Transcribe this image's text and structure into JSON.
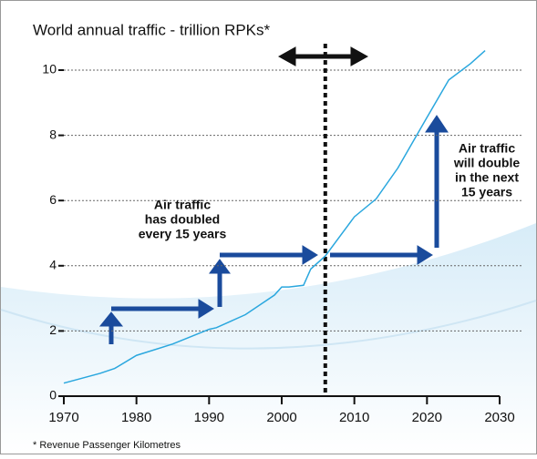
{
  "chart_data": {
    "type": "line",
    "title": "World annual traffic - trillion RPKs*",
    "footnote": "* Revenue Passenger Kilometres",
    "annotations": [
      [
        "Air traffic",
        "has doubled",
        "every 15 years"
      ],
      [
        "Air traffic",
        "will double",
        "in the next",
        "15 years"
      ]
    ],
    "x": [
      1970,
      1975,
      1977,
      1980,
      1985,
      1990,
      1991,
      1993,
      1995,
      1997,
      1999,
      2000,
      2001,
      2003,
      2004,
      2006,
      2010,
      2013,
      2016,
      2020,
      2023,
      2026,
      2028
    ],
    "series": [
      {
        "name": "traffic",
        "color": "#2aa7de",
        "values": [
          0.4,
          0.7,
          0.85,
          1.25,
          1.6,
          2.05,
          2.1,
          2.3,
          2.5,
          2.8,
          3.1,
          3.35,
          3.35,
          3.4,
          3.9,
          4.3,
          5.5,
          6.05,
          7.0,
          8.55,
          9.7,
          10.2,
          10.6
        ]
      }
    ],
    "xlim": [
      1970,
      2030
    ],
    "xticks": [
      1970,
      1980,
      1990,
      2000,
      2010,
      2020,
      2030
    ],
    "ylim": [
      0,
      10
    ],
    "yticks": [
      0,
      2,
      4,
      6,
      8,
      10
    ],
    "grid": true,
    "marker_x": 2006
  }
}
